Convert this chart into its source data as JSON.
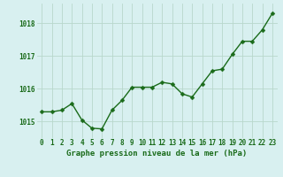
{
  "x": [
    0,
    1,
    2,
    3,
    4,
    5,
    6,
    7,
    8,
    9,
    10,
    11,
    12,
    13,
    14,
    15,
    16,
    17,
    18,
    19,
    20,
    21,
    22,
    23
  ],
  "y": [
    1015.3,
    1015.3,
    1015.35,
    1015.55,
    1015.05,
    1014.8,
    1014.78,
    1015.35,
    1015.65,
    1016.05,
    1016.05,
    1016.05,
    1016.2,
    1016.15,
    1015.85,
    1015.75,
    1016.15,
    1016.55,
    1016.6,
    1017.05,
    1017.45,
    1017.45,
    1017.8,
    1018.3
  ],
  "line_color": "#1a6b1a",
  "marker_color": "#1a6b1a",
  "bg_color": "#d8f0f0",
  "grid_color": "#b8d8cc",
  "xlabel": "Graphe pression niveau de la mer (hPa)",
  "xlabel_color": "#1a6b1a",
  "tick_color": "#1a6b1a",
  "ylim": [
    1014.5,
    1018.6
  ],
  "yticks": [
    1015,
    1016,
    1017,
    1018
  ],
  "xlim": [
    -0.5,
    23.5
  ],
  "xlabel_fontsize": 6.5,
  "tick_fontsize": 5.5,
  "marker_size": 2.5,
  "line_width": 1.0
}
